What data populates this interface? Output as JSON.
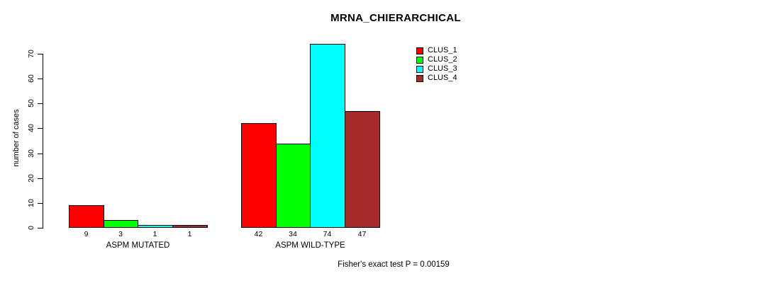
{
  "chart_data": {
    "type": "bar",
    "title": "MRNA_CHIERARCHICAL",
    "xlabel": "",
    "ylabel": "number of cases",
    "categories": [
      "ASPM MUTATED",
      "ASPM WILD-TYPE"
    ],
    "series": [
      {
        "name": "CLUS_1",
        "color": "#ff0000",
        "values": [
          9,
          42
        ]
      },
      {
        "name": "CLUS_2",
        "color": "#00ff00",
        "values": [
          3,
          34
        ]
      },
      {
        "name": "CLUS_3",
        "color": "#00ffff",
        "values": [
          1,
          74
        ]
      },
      {
        "name": "CLUS_4",
        "color": "#a52a2a",
        "values": [
          1,
          47
        ]
      }
    ],
    "bar_value_labels": [
      [
        9,
        3,
        1,
        1
      ],
      [
        42,
        34,
        74,
        47
      ]
    ],
    "ylim": [
      0,
      70
    ],
    "yticks": [
      0,
      10,
      20,
      30,
      40,
      50,
      60,
      70
    ],
    "grid": false,
    "legend_position": "top-right",
    "legend_entries": [
      "CLUS_1",
      "CLUS_2",
      "CLUS_3",
      "CLUS_4"
    ],
    "annotation": "Fisher's exact test P = 0.00159",
    "bar_border_color": "#000000",
    "text_color": "#000000",
    "background_color": "#ffffff"
  }
}
